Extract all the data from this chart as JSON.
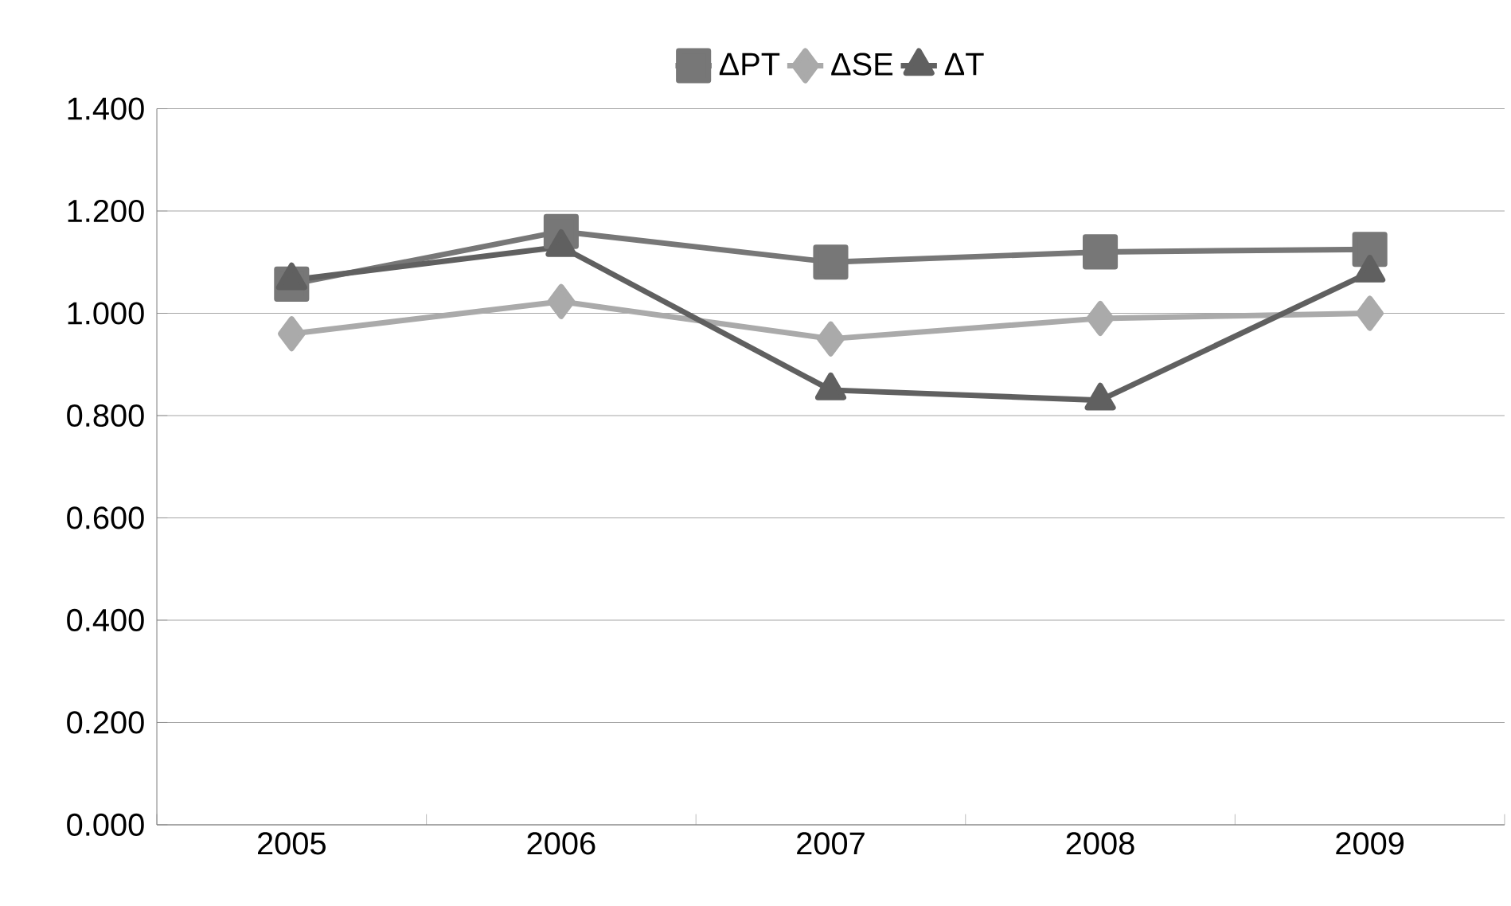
{
  "chart_data": {
    "type": "line",
    "categories": [
      "2005",
      "2006",
      "2007",
      "2008",
      "2009"
    ],
    "series": [
      {
        "name": "ΔPT",
        "color": "#777777",
        "marker": "square",
        "values": [
          1.057,
          1.16,
          1.1,
          1.12,
          1.125
        ]
      },
      {
        "name": "ΔSE",
        "color": "#aaaaaa",
        "marker": "diamond",
        "values": [
          0.96,
          1.023,
          0.95,
          0.99,
          1.0
        ]
      },
      {
        "name": "ΔT",
        "color": "#606060",
        "marker": "triangle",
        "values": [
          1.065,
          1.13,
          0.85,
          0.83,
          1.08
        ]
      }
    ],
    "ylim": [
      0,
      1.4
    ],
    "yticks": [
      {
        "value": 0,
        "label": "0.000"
      },
      {
        "value": 0.2,
        "label": "0.200"
      },
      {
        "value": 0.4,
        "label": "0.400"
      },
      {
        "value": 0.6,
        "label": "0.600"
      },
      {
        "value": 0.8,
        "label": "0.800"
      },
      {
        "value": 1.0,
        "label": "1.000"
      },
      {
        "value": 1.2,
        "label": "1.200"
      },
      {
        "value": 1.4,
        "label": "1.400"
      }
    ],
    "grid": "y",
    "legend": "top",
    "line_style": "solid"
  }
}
